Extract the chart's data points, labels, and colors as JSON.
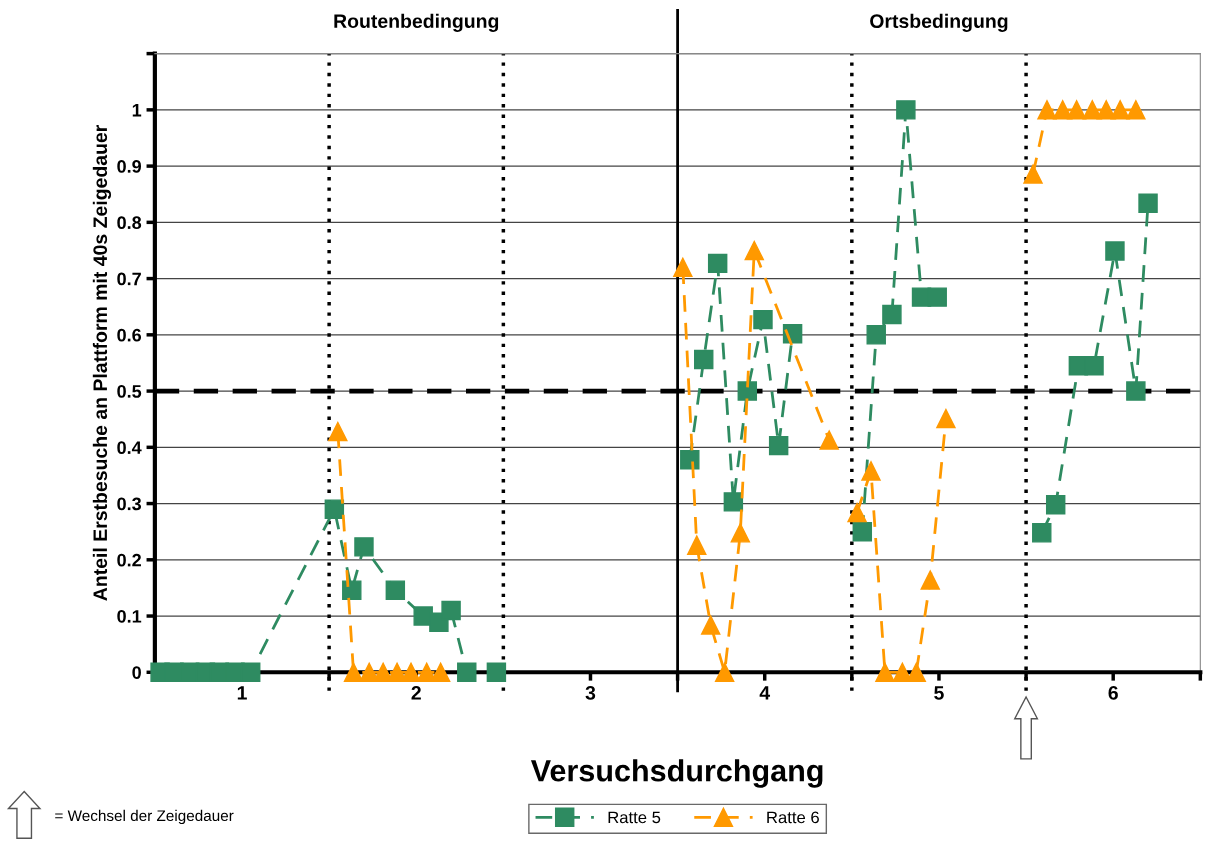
{
  "chart_data": {
    "type": "line",
    "xlabel": "Versuchsdurchgang",
    "ylabel": "Anteil Erstbesuche an Plattform mit 40s Zeigedauer",
    "xlim": [
      0.5,
      6.5
    ],
    "xticks": [
      {
        "value": 0.5,
        "label": null
      },
      1,
      {
        "value": 1.5,
        "label": null
      },
      2,
      {
        "value": 2.5,
        "label": null
      },
      3,
      {
        "value": 3.5,
        "label": null
      },
      4,
      {
        "value": 4.5,
        "label": null
      },
      5,
      {
        "value": 5.5,
        "label": null
      },
      6,
      {
        "value": 6.5,
        "label": null
      }
    ],
    "ylim": [
      0,
      1.1
    ],
    "yticks": [
      0,
      0.1,
      0.2,
      0.3,
      0.4,
      0.5,
      0.6,
      0.7,
      0.8,
      0.9,
      1,
      {
        "value": 1.1,
        "label": null
      }
    ],
    "grid": "y",
    "legend": "bottom",
    "line_style": "dashed",
    "series": [
      {
        "name": "Ratte 5",
        "color": "#2e8b61",
        "marker": "square",
        "x": [
          0.53,
          0.61,
          0.7,
          0.79,
          0.87,
          0.96,
          1.05,
          1.53,
          1.63,
          1.7,
          1.88,
          2.04,
          2.13,
          2.2,
          2.29,
          2.46,
          3.0,
          3.57,
          3.65,
          3.73,
          3.82,
          3.9,
          3.99,
          4.08,
          4.16,
          4.3,
          4.56,
          4.64,
          4.73,
          4.81,
          4.9,
          4.99,
          5.3,
          5.59,
          5.67,
          5.8,
          5.89,
          6.01,
          6.13,
          6.2
        ],
        "values": [
          0,
          0,
          0,
          0,
          0,
          0,
          0,
          0.29,
          0.146,
          0.223,
          0.146,
          0.1,
          0.089,
          0.11,
          0,
          0,
          null,
          0.378,
          0.556,
          0.727,
          0.303,
          0.5,
          0.627,
          0.403,
          0.602,
          null,
          0.25,
          0.6,
          0.636,
          1.0,
          0.667,
          0.667,
          null,
          0.248,
          0.298,
          0.545,
          0.545,
          0.749,
          0.5,
          0.834
        ]
      },
      {
        "name": "Ratte 6",
        "color": "#ff9900",
        "marker": "triangle",
        "x": [
          1.55,
          1.64,
          1.73,
          1.81,
          1.89,
          1.97,
          2.06,
          2.14,
          3.0,
          3.53,
          3.61,
          3.69,
          3.77,
          3.86,
          3.94,
          4.37,
          4.45,
          4.53,
          4.61,
          4.69,
          4.79,
          4.87,
          4.95,
          5.04,
          5.3,
          5.54,
          5.62,
          5.71,
          5.79,
          5.88,
          5.96,
          6.04,
          6.13
        ],
        "values": [
          0.428,
          0,
          0,
          0,
          0,
          0,
          0,
          0,
          null,
          0.72,
          0.226,
          0.084,
          0,
          0.248,
          0.75,
          0.413,
          null,
          0.284,
          0.358,
          0,
          0,
          0,
          0.164,
          0.451,
          null,
          0.886,
          1,
          1,
          1,
          1,
          1,
          1,
          1
        ]
      }
    ],
    "ref_lines": [
      {
        "axis": "y",
        "value": 0.5,
        "color": "#000000",
        "line_style": "dashed"
      },
      {
        "axis": "x",
        "value": 1.5,
        "color": "#000000",
        "line_style": "dotted"
      },
      {
        "axis": "x",
        "value": 2.5,
        "color": "#000000",
        "line_style": "dotted"
      },
      {
        "axis": "x",
        "value": 3.5,
        "color": "#000000",
        "line_style": "solid"
      },
      {
        "axis": "x",
        "value": 4.5,
        "color": "#000000",
        "line_style": "dotted"
      },
      {
        "axis": "x",
        "value": 5.5,
        "color": "#000000",
        "line_style": "dotted"
      }
    ],
    "annotations": [
      "Routenbedingung",
      "Ortsbedingung",
      "= Wechsel der Zeigedauer"
    ]
  }
}
